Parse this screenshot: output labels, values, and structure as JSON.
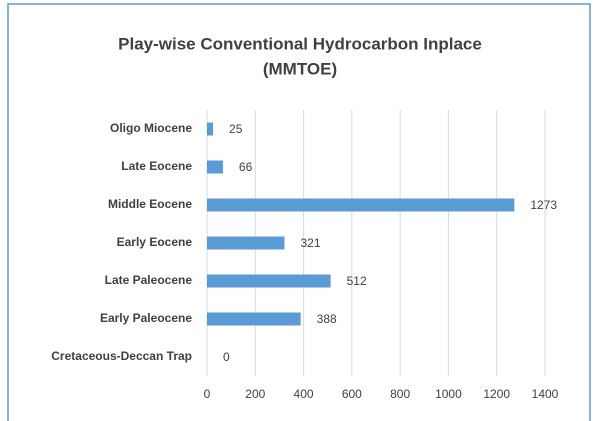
{
  "chart_data": {
    "type": "bar",
    "orientation": "horizontal",
    "title": "Play-wise Conventional Hydrocarbon Inplace",
    "subtitle": "(MMTOE)",
    "categories": [
      "Oligo Miocene",
      "Late Eocene",
      "Middle Eocene",
      "Early Eocene",
      "Late Paleocene",
      "Early Paleocene",
      "Cretaceous-Deccan Trap"
    ],
    "values": [
      25,
      66,
      1273,
      321,
      512,
      388,
      0
    ],
    "color": "#5b9bd5",
    "xlim": [
      0,
      1400
    ],
    "xticks": [
      0,
      200,
      400,
      600,
      800,
      1000,
      1200,
      1400
    ],
    "grid": true
  }
}
